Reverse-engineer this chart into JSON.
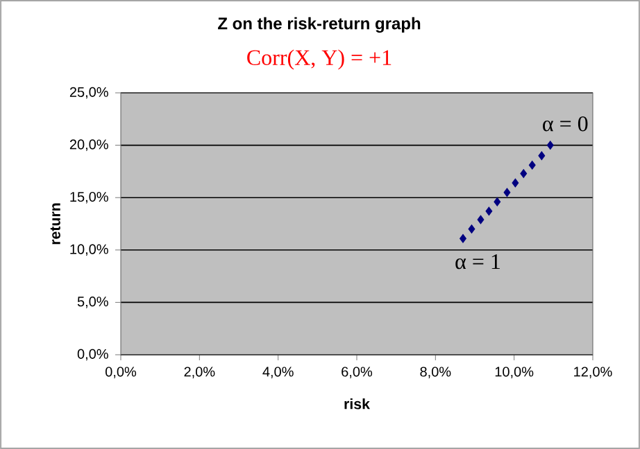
{
  "chart_data": {
    "type": "scatter",
    "title": "Z on the risk-return graph",
    "subtitle": "Corr(X, Y) = +1",
    "xlabel": "risk",
    "ylabel": "return",
    "x": [
      8.7,
      8.92,
      9.15,
      9.36,
      9.57,
      9.82,
      10.03,
      10.24,
      10.46,
      10.7,
      10.92
    ],
    "values": [
      11.1,
      12.0,
      12.9,
      13.7,
      14.6,
      15.5,
      16.4,
      17.3,
      18.1,
      19.0,
      20.0
    ],
    "color": "#000080",
    "marker": "diamond",
    "grid": "y",
    "xlim": [
      0,
      12
    ],
    "ylim": [
      0,
      25
    ],
    "xticks": [
      {
        "value": 0,
        "label": "0,0%"
      },
      {
        "value": 2,
        "label": "2,0%"
      },
      {
        "value": 4,
        "label": "4,0%"
      },
      {
        "value": 6,
        "label": "6,0%"
      },
      {
        "value": 8,
        "label": "8,0%"
      },
      {
        "value": 10,
        "label": "10,0%"
      },
      {
        "value": 12,
        "label": "12,0%"
      }
    ],
    "yticks": [
      {
        "value": 0,
        "label": "0,0%"
      },
      {
        "value": 5,
        "label": "5,0%"
      },
      {
        "value": 10,
        "label": "10,0%"
      },
      {
        "value": 15,
        "label": "15,0%"
      },
      {
        "value": 20,
        "label": "20,0%"
      },
      {
        "value": 25,
        "label": "25,0%"
      }
    ],
    "annotations": [
      {
        "text": "α = 0",
        "x": 10.92,
        "y": 20.0
      },
      {
        "text": "α = 1",
        "x": 8.7,
        "y": 11.1
      }
    ]
  }
}
